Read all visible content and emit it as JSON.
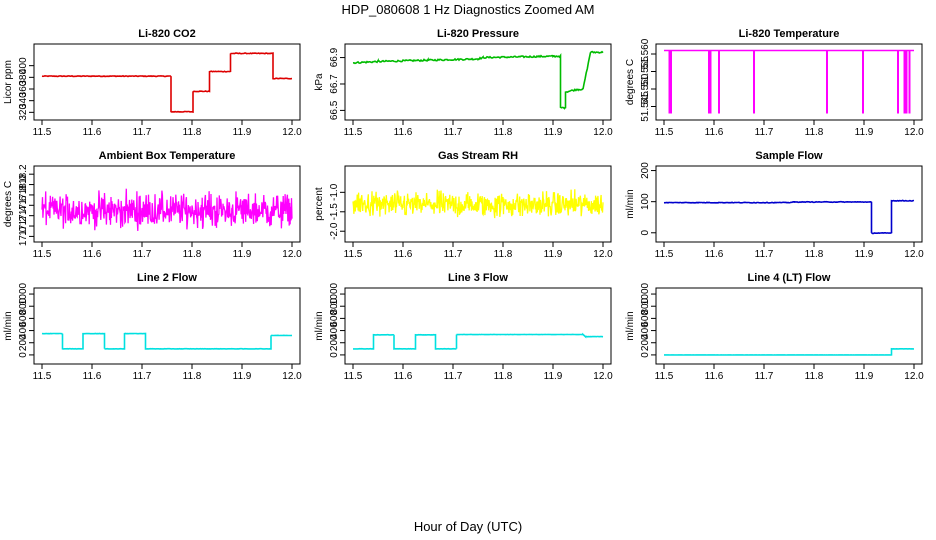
{
  "figure": {
    "title": "HDP_080608  1 Hz Diagnostics Zoomed AM",
    "xlabel": "Hour of Day (UTC)"
  },
  "chart_data": [
    {
      "type": "line",
      "title": "Li-820 CO2",
      "ylabel": "Licor ppm",
      "color": "#dd0000",
      "xlim": [
        11.5,
        12.0
      ],
      "xticks": [
        11.5,
        11.6,
        11.7,
        11.8,
        11.9,
        12.0
      ],
      "ylim": [
        312,
        432
      ],
      "yticks": [
        320,
        340,
        360,
        380,
        400
      ],
      "noise": 0.6,
      "series": [
        {
          "x": [
            11.5,
            11.758,
            11.758,
            11.802,
            11.802,
            11.835,
            11.835,
            11.877,
            11.877,
            11.962,
            11.962,
            12.0
          ],
          "y": [
            382,
            382,
            321,
            321,
            356,
            356,
            390,
            390,
            421,
            421,
            378,
            378
          ]
        }
      ]
    },
    {
      "type": "line",
      "title": "Li-820 Pressure",
      "ylabel": "kPa",
      "color": "#00bb00",
      "xlim": [
        11.5,
        12.0
      ],
      "xticks": [
        11.5,
        11.6,
        11.7,
        11.8,
        11.9,
        12.0
      ],
      "ylim": [
        66.45,
        66.98
      ],
      "yticks": [
        66.5,
        66.7,
        66.9
      ],
      "noise": 0.006,
      "series": [
        {
          "x": [
            11.5,
            11.55,
            11.65,
            11.75,
            11.76,
            11.9,
            11.915,
            11.915,
            11.925,
            11.925,
            11.95,
            11.96,
            11.975,
            12.0
          ],
          "y": [
            66.86,
            66.87,
            66.88,
            66.89,
            66.9,
            66.91,
            66.91,
            66.52,
            66.52,
            66.64,
            66.66,
            66.66,
            66.94,
            66.94
          ]
        }
      ]
    },
    {
      "type": "line",
      "title": "Li-820 Temperature",
      "ylabel": "degrees C",
      "color": "#ff00ff",
      "xlim": [
        11.5,
        12.0
      ],
      "xticks": [
        11.5,
        11.6,
        11.7,
        11.8,
        11.9,
        12.0
      ],
      "ylim": [
        51.542,
        51.562
      ],
      "yticks": [
        51.545,
        51.55,
        51.555,
        51.56
      ],
      "noise": 0,
      "series": [
        {
          "x": [
            11.5,
            12.0
          ],
          "y": [
            51.561,
            51.561
          ]
        }
      ],
      "spikes": {
        "x": [
          11.511,
          11.514,
          11.59,
          11.593,
          11.61,
          11.68,
          11.826,
          11.898,
          11.968,
          11.981,
          11.985,
          11.991
        ],
        "y": 51.543
      }
    },
    {
      "type": "line",
      "title": "Ambient Box Temperature",
      "ylabel": "degrees C",
      "color": "#ff00ff",
      "xlim": [
        11.5,
        12.0
      ],
      "xticks": [
        11.5,
        11.6,
        11.7,
        11.8,
        11.9,
        12.0
      ],
      "ylim": [
        16.95,
        18.3
      ],
      "yticks": [
        17.0,
        17.2,
        17.4,
        17.6,
        17.8,
        18.0,
        18.2
      ],
      "band": {
        "center": 17.5,
        "amplitude": 0.3,
        "n": 540
      }
    },
    {
      "type": "line",
      "title": "Gas Stream RH",
      "ylabel": "percent",
      "color": "#ffff00",
      "xlim": [
        11.5,
        12.0
      ],
      "xticks": [
        11.5,
        11.6,
        11.7,
        11.8,
        11.9,
        12.0
      ],
      "ylim": [
        -2.2,
        -0.4
      ],
      "yticks": [
        -2.0,
        -1.5,
        -1.0
      ],
      "band": {
        "center": -1.32,
        "amplitude": 0.3,
        "n": 540
      }
    },
    {
      "type": "line",
      "title": "Sample Flow",
      "ylabel": "ml/min",
      "color": "#0000cc",
      "xlim": [
        11.5,
        12.0
      ],
      "xticks": [
        11.5,
        11.6,
        11.7,
        11.8,
        11.9,
        12.0
      ],
      "ylim": [
        -20,
        205
      ],
      "yticks": [
        0,
        100,
        200
      ],
      "noise": 1,
      "series": [
        {
          "x": [
            11.5,
            11.75,
            11.76,
            11.915,
            11.915,
            11.955,
            11.955,
            12.0
          ],
          "y": [
            97,
            97,
            99,
            99,
            -1,
            -1,
            103,
            103
          ]
        }
      ]
    },
    {
      "type": "line",
      "title": "Line 2 Flow",
      "ylabel": "ml/min",
      "color": "#00e0e0",
      "xlim": [
        11.5,
        12.0
      ],
      "xticks": [
        11.5,
        11.6,
        11.7,
        11.8,
        11.9,
        12.0
      ],
      "ylim": [
        -100,
        1050
      ],
      "yticks": [
        0,
        200,
        400,
        600,
        800,
        1000
      ],
      "noise": 2,
      "series": [
        {
          "x": [
            11.5,
            11.541,
            11.541,
            11.582,
            11.582,
            11.625,
            11.625,
            11.665,
            11.665,
            11.707,
            11.707,
            11.958,
            11.958,
            12.0
          ],
          "y": [
            350,
            350,
            100,
            100,
            350,
            350,
            100,
            100,
            350,
            350,
            100,
            100,
            320,
            320
          ]
        }
      ]
    },
    {
      "type": "line",
      "title": "Line 3 Flow",
      "ylabel": "ml/min",
      "color": "#00e0e0",
      "xlim": [
        11.5,
        12.0
      ],
      "xticks": [
        11.5,
        11.6,
        11.7,
        11.8,
        11.9,
        12.0
      ],
      "ylim": [
        -100,
        1050
      ],
      "yticks": [
        0,
        200,
        400,
        600,
        800,
        1000
      ],
      "noise": 2,
      "series": [
        {
          "x": [
            11.5,
            11.541,
            11.541,
            11.582,
            11.582,
            11.625,
            11.625,
            11.665,
            11.665,
            11.707,
            11.707,
            11.96,
            11.965,
            12.0
          ],
          "y": [
            100,
            100,
            330,
            330,
            100,
            100,
            330,
            330,
            100,
            100,
            335,
            335,
            300,
            300
          ]
        }
      ]
    },
    {
      "type": "line",
      "title": "Line 4 (LT) Flow",
      "ylabel": "ml/min",
      "color": "#00e0e0",
      "xlim": [
        11.5,
        12.0
      ],
      "xticks": [
        11.5,
        11.6,
        11.7,
        11.8,
        11.9,
        12.0
      ],
      "ylim": [
        -100,
        1050
      ],
      "yticks": [
        0,
        200,
        400,
        600,
        800,
        1000
      ],
      "noise": 1,
      "series": [
        {
          "x": [
            11.5,
            11.955,
            11.955,
            12.0
          ],
          "y": [
            0,
            0,
            100,
            100
          ]
        }
      ]
    }
  ]
}
